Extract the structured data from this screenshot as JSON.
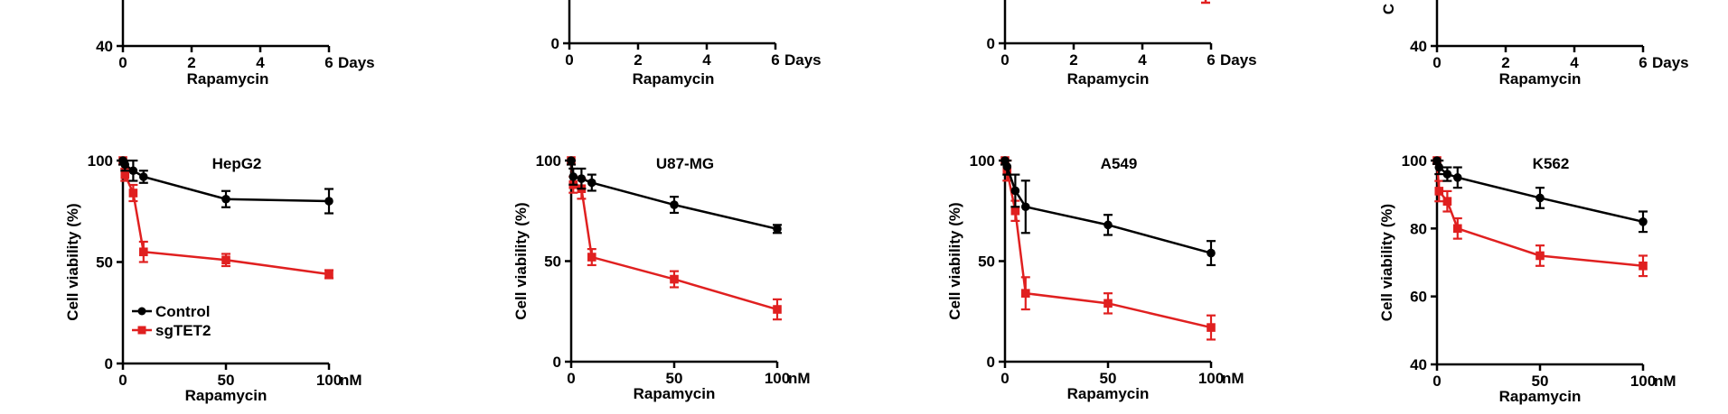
{
  "colors": {
    "control": "#000000",
    "sgTET2": "#e02020",
    "axis": "#000000"
  },
  "top_row": [
    {
      "panel": "top-1",
      "x_ticks": [
        "0",
        "2",
        "4",
        "6"
      ],
      "x_unit": "Days",
      "xlabel": "Rapamycin",
      "y_tick_shown": "40",
      "ylabel_fragment": ""
    },
    {
      "panel": "top-2",
      "x_ticks": [
        "0",
        "2",
        "4",
        "6"
      ],
      "x_unit": "Days",
      "xlabel": "Rapamycin",
      "y_tick_shown": "0",
      "ylabel_fragment": ""
    },
    {
      "panel": "top-3",
      "x_ticks": [
        "0",
        "2",
        "4",
        "6"
      ],
      "x_unit": "Days",
      "xlabel": "Rapamycin",
      "y_tick_shown": "0",
      "ylabel_fragment": ""
    },
    {
      "panel": "top-4",
      "x_ticks": [
        "0",
        "2",
        "4",
        "6"
      ],
      "x_unit": "Days",
      "xlabel": "Rapamycin",
      "y_tick_shown": "40",
      "ylabel_fragment": "C"
    }
  ],
  "chart_data": [
    {
      "type": "line",
      "title": "HepG2",
      "xlabel": "Rapamycin",
      "x_unit": "nM",
      "ylabel": "Cell viability (%)",
      "xlim": [
        0,
        100
      ],
      "ylim": [
        0,
        100
      ],
      "x_ticks": [
        0,
        50,
        100
      ],
      "y_ticks": [
        0,
        50,
        100
      ],
      "x_tick_labels": [
        "0",
        "50",
        "100"
      ],
      "y_tick_labels": [
        "0",
        "50",
        "100"
      ],
      "legend": [
        "Control",
        "sgTET2"
      ],
      "x": [
        0,
        1,
        5,
        10,
        50,
        100
      ],
      "series": [
        {
          "name": "Control",
          "values": [
            100,
            98,
            95,
            92,
            81,
            80
          ],
          "errors": [
            2,
            3,
            5,
            3,
            4,
            6
          ]
        },
        {
          "name": "sgTET2",
          "values": [
            100,
            93,
            84,
            55,
            51,
            44
          ],
          "errors": [
            2,
            3,
            4,
            5,
            3,
            2
          ]
        }
      ]
    },
    {
      "type": "line",
      "title": "U87-MG",
      "xlabel": "Rapamycin",
      "x_unit": "nM",
      "ylabel": "Cell viability (%)",
      "xlim": [
        0,
        100
      ],
      "ylim": [
        0,
        100
      ],
      "x_ticks": [
        0,
        50,
        100
      ],
      "y_ticks": [
        0,
        50,
        100
      ],
      "x_tick_labels": [
        "0",
        "50",
        "100"
      ],
      "y_tick_labels": [
        "0",
        "50",
        "100"
      ],
      "x": [
        0,
        1,
        5,
        10,
        50,
        100
      ],
      "series": [
        {
          "name": "Control",
          "values": [
            100,
            92,
            91,
            89,
            78,
            66
          ],
          "errors": [
            2,
            4,
            5,
            4,
            4,
            2
          ]
        },
        {
          "name": "sgTET2",
          "values": [
            100,
            88,
            86,
            52,
            41,
            26
          ],
          "errors": [
            2,
            4,
            5,
            4,
            4,
            5
          ]
        }
      ]
    },
    {
      "type": "line",
      "title": "A549",
      "xlabel": "Rapamycin",
      "x_unit": "nM",
      "ylabel": "Cell viability (%)",
      "xlim": [
        0,
        100
      ],
      "ylim": [
        0,
        100
      ],
      "x_ticks": [
        0,
        50,
        100
      ],
      "y_ticks": [
        0,
        50,
        100
      ],
      "x_tick_labels": [
        "0",
        "50",
        "100"
      ],
      "y_tick_labels": [
        "0",
        "50",
        "100"
      ],
      "x": [
        0,
        1,
        5,
        10,
        50,
        100
      ],
      "series": [
        {
          "name": "Control",
          "values": [
            100,
            97,
            85,
            77,
            68,
            54
          ],
          "errors": [
            2,
            4,
            8,
            13,
            5,
            6
          ]
        },
        {
          "name": "sgTET2",
          "values": [
            100,
            95,
            75,
            34,
            29,
            17
          ],
          "errors": [
            2,
            5,
            5,
            8,
            5,
            6
          ]
        }
      ]
    },
    {
      "type": "line",
      "title": "K562",
      "xlabel": "Rapamycin",
      "x_unit": "nM",
      "ylabel": "Cell viability (%)",
      "xlim": [
        0,
        100
      ],
      "ylim": [
        40,
        100
      ],
      "x_ticks": [
        0,
        50,
        100
      ],
      "y_ticks": [
        40,
        60,
        80,
        100
      ],
      "x_tick_labels": [
        "0",
        "50",
        "100"
      ],
      "y_tick_labels": [
        "40",
        "60",
        "80",
        "100"
      ],
      "x": [
        0,
        1,
        5,
        10,
        50,
        100
      ],
      "series": [
        {
          "name": "Control",
          "values": [
            100,
            98,
            96,
            95,
            89,
            82
          ],
          "errors": [
            1,
            2,
            2,
            3,
            3,
            3
          ]
        },
        {
          "name": "sgTET2",
          "values": [
            100,
            91,
            88,
            80,
            72,
            69
          ],
          "errors": [
            1,
            3,
            3,
            3,
            3,
            3
          ]
        }
      ]
    }
  ]
}
